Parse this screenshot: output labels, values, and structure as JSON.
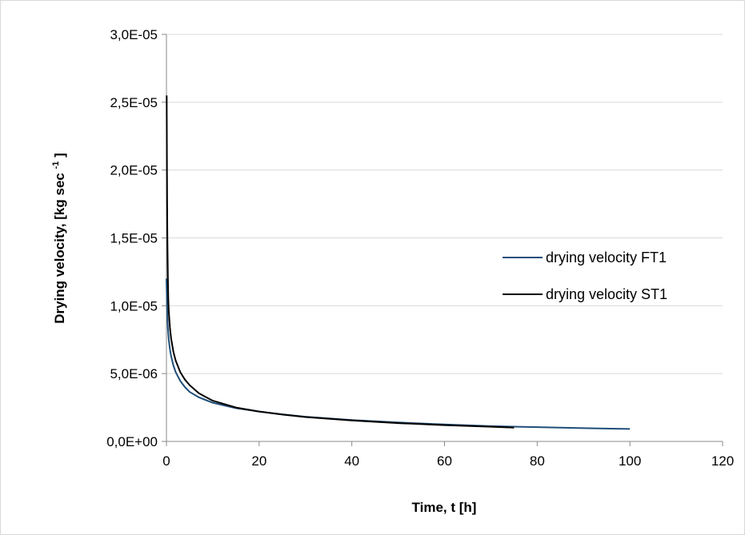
{
  "chart_data": {
    "type": "line",
    "title": "",
    "xlabel": "Time, t [h]",
    "ylabel": {
      "text": "Drying velocity, [kg sec",
      "superscript": "-1",
      "suffix": "]"
    },
    "xlim": [
      0,
      120
    ],
    "ylim": [
      0,
      3e-05
    ],
    "x_ticks": [
      "0",
      "20",
      "40",
      "60",
      "80",
      "100",
      "120"
    ],
    "y_ticks": [
      "0,0E+00",
      "5,0E-06",
      "1,0E-05",
      "1,5E-05",
      "2,0E-05",
      "2,5E-05",
      "3,0E-05"
    ],
    "grid": "horizontal",
    "legend_position": "right",
    "series": [
      {
        "name": "drying velocity FT1",
        "color": "#1f4e79",
        "x": [
          0,
          0.1,
          0.2,
          0.3,
          0.5,
          0.75,
          1,
          1.5,
          2,
          3,
          4,
          5,
          7,
          10,
          15,
          20,
          25,
          30,
          40,
          50,
          60,
          70,
          80,
          90,
          100
        ],
        "y": [
          1.2e-05,
          1.05e-05,
          9.2e-06,
          8.4e-06,
          7.5e-06,
          6.8e-06,
          6.3e-06,
          5.6e-06,
          5.1e-06,
          4.45e-06,
          4e-06,
          3.65e-06,
          3.25e-06,
          2.85e-06,
          2.45e-06,
          2.2e-06,
          2e-06,
          1.82e-06,
          1.58e-06,
          1.4e-06,
          1.25e-06,
          1.13e-06,
          1.05e-06,
          9.8e-07,
          9.2e-07
        ]
      },
      {
        "name": "drying velocity ST1",
        "color": "#000000",
        "x": [
          0.05,
          0.1,
          0.15,
          0.2,
          0.3,
          0.4,
          0.5,
          0.75,
          1,
          1.5,
          2,
          3,
          4,
          5,
          7,
          10,
          15,
          20,
          25,
          30,
          40,
          50,
          60,
          70,
          75
        ],
        "y": [
          2.55e-05,
          2.1e-05,
          1.75e-05,
          1.5e-05,
          1.22e-05,
          1.05e-05,
          9.6e-06,
          8.4e-06,
          7.6e-06,
          6.6e-06,
          5.95e-06,
          5.1e-06,
          4.55e-06,
          4.15e-06,
          3.55e-06,
          3e-06,
          2.5e-06,
          2.2e-06,
          1.98e-06,
          1.8e-06,
          1.55e-06,
          1.35e-06,
          1.2e-06,
          1.08e-06,
          1.02e-06
        ]
      }
    ]
  }
}
